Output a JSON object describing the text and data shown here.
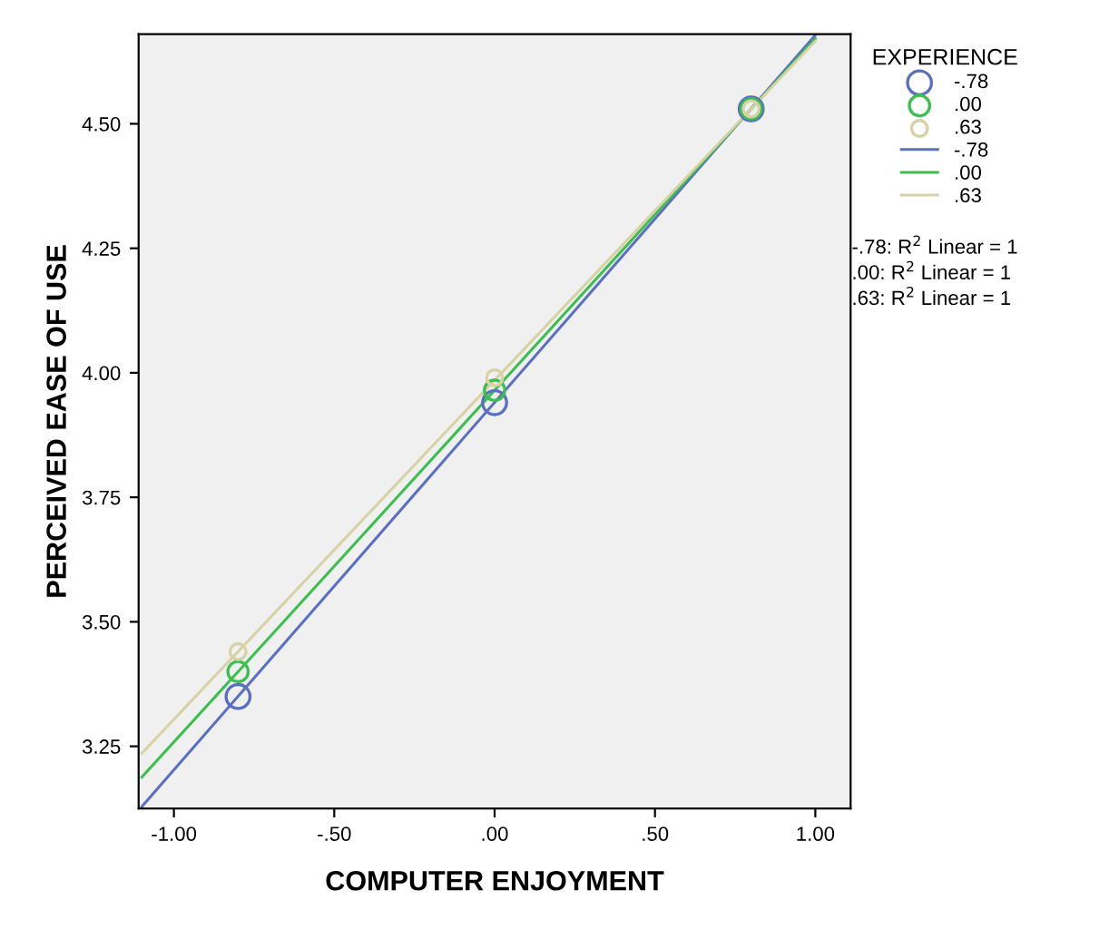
{
  "chart_data": {
    "type": "scatter",
    "xlabel": "COMPUTER ENJOYMENT",
    "ylabel": "PERCEIVED EASE OF USE",
    "legend_title": "EXPERIENCE",
    "xlim": [
      -1.11,
      1.11
    ],
    "ylim": [
      3.125,
      4.68
    ],
    "xticks": [
      {
        "value": -1.0,
        "label": "-1.00"
      },
      {
        "value": -0.5,
        "label": "-.50"
      },
      {
        "value": 0,
        "label": ".00"
      },
      {
        "value": 0.5,
        "label": ".50"
      },
      {
        "value": 1.0,
        "label": "1.00"
      }
    ],
    "yticks": [
      {
        "value": 3.25,
        "label": "3.25"
      },
      {
        "value": 3.5,
        "label": "3.50"
      },
      {
        "value": 3.75,
        "label": "3.75"
      },
      {
        "value": 4.0,
        "label": "4.00"
      },
      {
        "value": 4.25,
        "label": "4.25"
      },
      {
        "value": 4.5,
        "label": "4.50"
      }
    ],
    "grid": false,
    "legend": "right",
    "series": [
      {
        "name": "-.78",
        "marker": "circle",
        "color": "#5b6fc2",
        "x": [
          -0.8,
          0,
          0.8
        ],
        "values": [
          3.35,
          3.94,
          4.53
        ]
      },
      {
        "name": ".00",
        "marker": "circle",
        "color": "#3cbf4f",
        "x": [
          -0.8,
          0,
          0.8
        ],
        "values": [
          3.4,
          3.965,
          4.53
        ]
      },
      {
        "name": ".63",
        "marker": "circle",
        "color": "#d6d2a6",
        "x": [
          -0.8,
          0,
          0.8
        ],
        "values": [
          3.44,
          3.99,
          4.53
        ]
      },
      {
        "name": "-.78",
        "type": "line",
        "marker": "none",
        "color": "#5b6fc2",
        "x": [
          -1.1,
          1.0
        ],
        "values": [
          3.129,
          4.678
        ]
      },
      {
        "name": ".00",
        "type": "line",
        "marker": "none",
        "color": "#3cbf4f",
        "x": [
          -1.1,
          1.0
        ],
        "values": [
          3.188,
          4.671
        ]
      },
      {
        "name": ".63",
        "type": "line",
        "marker": "none",
        "color": "#d6d2a6",
        "x": [
          -1.1,
          1.0
        ],
        "values": [
          3.236,
          4.666
        ]
      }
    ],
    "annotations": [
      "-.78: R$^{2}$ Linear = 1",
      ".00: R$^{2}$ Linear = 1",
      ".63: R$^{2}$ Linear = 1"
    ]
  }
}
